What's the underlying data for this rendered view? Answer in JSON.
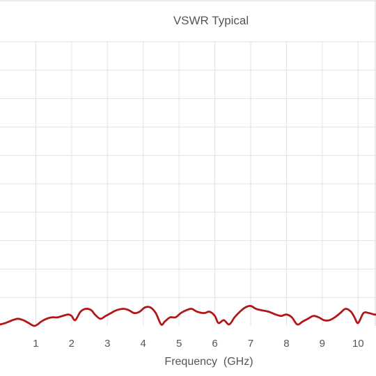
{
  "chart_data": {
    "type": "line",
    "title": "VSWR Typical",
    "xlabel": "Frequency  (GHz)",
    "ylabel": "",
    "xlim": [
      0,
      10.5
    ],
    "ylim": [
      1,
      2
    ],
    "x_ticks": [
      "1",
      "2",
      "3",
      "4",
      "5",
      "6",
      "7",
      "8",
      "9",
      "10"
    ],
    "y_gridlines": [
      1.1,
      1.2,
      1.3,
      1.4,
      1.5,
      1.6,
      1.7,
      1.8,
      1.9,
      2.0
    ],
    "grid": true,
    "legend": "none",
    "series_color": "#b01818",
    "series": [
      {
        "x": [
          0.0,
          0.15,
          0.35,
          0.5,
          0.65,
          0.8,
          0.95,
          1.05,
          1.15,
          1.3,
          1.45,
          1.6,
          1.75,
          1.9,
          2.0,
          2.1,
          2.25,
          2.4,
          2.55,
          2.65,
          2.8,
          2.95,
          3.1,
          3.25,
          3.45,
          3.6,
          3.75,
          3.9,
          4.05,
          4.2,
          4.35,
          4.5,
          4.6,
          4.75,
          4.9,
          5.05,
          5.2,
          5.35,
          5.5,
          5.7,
          5.85,
          6.0,
          6.1,
          6.25,
          6.4,
          6.55,
          6.7,
          6.85,
          7.0,
          7.15,
          7.3,
          7.5,
          7.7,
          7.85,
          8.0,
          8.15,
          8.3,
          8.45,
          8.6,
          8.75,
          8.9,
          9.05,
          9.2,
          9.35,
          9.5,
          9.65,
          9.8,
          9.9,
          10.0,
          10.15,
          10.3,
          10.45,
          10.5
        ],
        "y": [
          1.005,
          1.01,
          1.02,
          1.025,
          1.02,
          1.01,
          1.0,
          1.005,
          1.015,
          1.025,
          1.03,
          1.03,
          1.035,
          1.04,
          1.035,
          1.02,
          1.05,
          1.06,
          1.055,
          1.04,
          1.025,
          1.035,
          1.045,
          1.055,
          1.06,
          1.055,
          1.045,
          1.05,
          1.065,
          1.065,
          1.045,
          1.005,
          1.015,
          1.03,
          1.03,
          1.045,
          1.055,
          1.06,
          1.05,
          1.045,
          1.05,
          1.035,
          1.01,
          1.02,
          1.005,
          1.03,
          1.05,
          1.065,
          1.07,
          1.06,
          1.055,
          1.05,
          1.04,
          1.035,
          1.04,
          1.03,
          1.005,
          1.015,
          1.025,
          1.035,
          1.03,
          1.02,
          1.02,
          1.03,
          1.045,
          1.06,
          1.05,
          1.03,
          1.01,
          1.045,
          1.045,
          1.04,
          1.04
        ]
      }
    ]
  }
}
